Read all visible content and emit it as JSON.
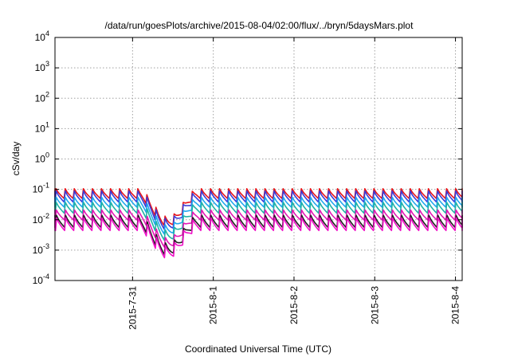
{
  "chart_data": {
    "type": "line",
    "title": "/data/run/goesPlots/archive/2015-08-04/02:00/flux/../bryn/5daysMars.plot",
    "xlabel": "Coordinated Universal Time (UTC)",
    "ylabel": "cSv/day",
    "yscale": "log",
    "ylim": [
      0.0001,
      10000
    ],
    "y_ticks": [
      {
        "value": 0.0001,
        "base": "10",
        "exp": "-4"
      },
      {
        "value": 0.001,
        "base": "10",
        "exp": "-3"
      },
      {
        "value": 0.01,
        "base": "10",
        "exp": "-2"
      },
      {
        "value": 0.1,
        "base": "10",
        "exp": "-1"
      },
      {
        "value": 1,
        "base": "10",
        "exp": "0"
      },
      {
        "value": 10,
        "base": "10",
        "exp": "1"
      },
      {
        "value": 100,
        "base": "10",
        "exp": "2"
      },
      {
        "value": 1000,
        "base": "10",
        "exp": "3"
      },
      {
        "value": 10000,
        "base": "10",
        "exp": "4"
      }
    ],
    "xlim": [
      "2015-07-30T00:56:00",
      "2015-08-04T02:00:00"
    ],
    "x_ticks": [
      {
        "value": "2015-07-31T00:00:00",
        "label": "2015-7-31"
      },
      {
        "value": "2015-08-01T00:00:00",
        "label": "2015-8-1"
      },
      {
        "value": "2015-08-02T00:00:00",
        "label": "2015-8-2"
      },
      {
        "value": "2015-08-03T00:00:00",
        "label": "2015-8-3"
      },
      {
        "value": "2015-08-04T00:00:00",
        "label": "2015-8-4"
      }
    ],
    "grid": true,
    "legend": "none",
    "pattern": {
      "period_hours": 2.7,
      "description": "sawtooth: sharp rise then gradual decay each period",
      "dip": {
        "center": "2015-07-31T10:30:00",
        "min_factor": 0.12
      }
    },
    "series": [
      {
        "color": "#e8151b",
        "peak": 0.105,
        "trough": 0.05
      },
      {
        "color": "#3b3bd6",
        "peak": 0.088,
        "trough": 0.038
      },
      {
        "color": "#22a8ee",
        "peak": 0.055,
        "trough": 0.026
      },
      {
        "color": "#20b3a6",
        "peak": 0.037,
        "trough": 0.0165
      },
      {
        "color": "#e219b5",
        "peak": 0.021,
        "trough": 0.0098
      },
      {
        "color": "#202020",
        "peak": 0.014,
        "trough": 0.0056
      },
      {
        "color": "#f012c8",
        "peak": 0.0115,
        "trough": 0.0044
      }
    ]
  }
}
